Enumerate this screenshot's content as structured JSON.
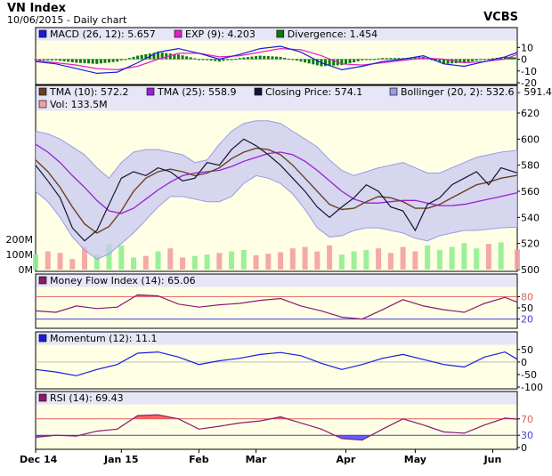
{
  "header": {
    "title": "VN Index",
    "subtitle": "10/06/2015 - Daily chart",
    "source": "VCBS"
  },
  "colors": {
    "panel_bg": "#ffffe6",
    "legend_bg": "#e6e6f6",
    "border": "#000000",
    "band_fill": "#c8c8f0",
    "band_edge": "#9a9ae6",
    "close": "#141432",
    "tma10": "#6a4024",
    "tma25": "#9b1fd6",
    "vol_up": "#90ee90",
    "vol_down": "#f4a0a0",
    "mfi": "#8a1a6e",
    "momentum": "#1a1adf",
    "rsi": "#8a1a6e",
    "macd": "#1a1adf",
    "signal": "#e020c8",
    "divergence": "#0a7a0a",
    "red_line": "#e06060",
    "blue_line": "#4040d0",
    "over_fill": "#ff6060",
    "under_fill": "#6060ff"
  },
  "chart_data": [
    {
      "type": "line",
      "panel": "MACD",
      "legend": [
        {
          "label": "MACD (26, 12): 5.657",
          "color": "#1a1adf"
        },
        {
          "label": "EXP (9): 4.203",
          "color": "#e020c8"
        },
        {
          "label": "Divergence: 1.454",
          "color": "#0a7a0a"
        }
      ],
      "yticks": [
        "10",
        "0",
        "-10",
        "-20"
      ],
      "ylim": [
        -20,
        14
      ],
      "x": [
        0,
        5,
        10,
        15,
        20,
        25,
        30,
        35,
        40,
        45,
        50,
        55,
        60,
        65,
        70,
        75,
        80,
        85,
        90,
        95,
        100,
        105,
        110,
        115,
        118
      ],
      "series": [
        {
          "name": "MACD",
          "values": [
            -2,
            -4,
            -8,
            -12,
            -11,
            -3,
            6,
            9,
            5,
            0,
            4,
            9,
            11,
            6,
            -3,
            -9,
            -6,
            -2,
            0,
            3,
            -4,
            -6,
            -2,
            2,
            5.657
          ]
        },
        {
          "name": "EXP",
          "values": [
            -1,
            -3,
            -5,
            -8,
            -9,
            -6,
            0,
            5,
            5,
            2,
            3,
            6,
            9,
            8,
            3,
            -4,
            -5,
            -3,
            -1,
            1,
            0,
            -3,
            -2,
            0,
            4.203
          ]
        }
      ]
    },
    {
      "type": "line",
      "panel": "Price",
      "legend": [
        {
          "label": "TMA (10): 572.2",
          "color": "#6a4024"
        },
        {
          "label": "TMA (25): 558.9",
          "color": "#9b1fd6"
        },
        {
          "label": "Closing Price: 574.1",
          "color": "#141432"
        },
        {
          "label": "Bollinger (20, 2): 532.6 - 591.4",
          "color": "#9a9ae6"
        },
        {
          "label": "Vol: 133.5M",
          "color": "#f4a0a0"
        }
      ],
      "yticks": [
        "620",
        "600",
        "580",
        "560",
        "540",
        "520",
        "500"
      ],
      "ylim": [
        500,
        620
      ],
      "vol_ticks": [
        "200M",
        "100M",
        "0M"
      ],
      "vol_lim": [
        0,
        300
      ],
      "x": [
        0,
        3,
        6,
        9,
        12,
        15,
        18,
        21,
        24,
        27,
        30,
        33,
        36,
        39,
        42,
        45,
        48,
        51,
        54,
        57,
        60,
        63,
        66,
        69,
        72,
        75,
        78,
        81,
        84,
        87,
        90,
        93,
        96,
        99,
        102,
        105,
        108,
        111,
        114,
        118
      ],
      "close": [
        580,
        568,
        555,
        532,
        522,
        530,
        550,
        570,
        575,
        572,
        578,
        575,
        568,
        570,
        582,
        580,
        592,
        600,
        595,
        588,
        580,
        570,
        560,
        548,
        540,
        548,
        555,
        565,
        560,
        548,
        545,
        530,
        550,
        555,
        565,
        570,
        575,
        565,
        578,
        574.1
      ],
      "tma10": [
        584,
        575,
        563,
        548,
        535,
        528,
        533,
        545,
        560,
        570,
        575,
        577,
        575,
        572,
        574,
        578,
        585,
        590,
        593,
        592,
        588,
        580,
        570,
        560,
        550,
        546,
        547,
        552,
        556,
        555,
        552,
        547,
        547,
        550,
        555,
        560,
        565,
        567,
        570,
        572.2
      ],
      "tma25": [
        596,
        590,
        582,
        572,
        563,
        553,
        545,
        543,
        547,
        554,
        561,
        567,
        572,
        574,
        575,
        576,
        579,
        583,
        586,
        589,
        590,
        588,
        583,
        576,
        568,
        560,
        554,
        551,
        551,
        552,
        553,
        553,
        551,
        549,
        549,
        550,
        552,
        554,
        556,
        558.9
      ],
      "bb_upper": [
        606,
        604,
        600,
        594,
        588,
        578,
        570,
        582,
        590,
        592,
        592,
        590,
        588,
        582,
        584,
        596,
        606,
        612,
        614,
        614,
        612,
        606,
        600,
        594,
        584,
        576,
        572,
        575,
        578,
        580,
        582,
        578,
        574,
        574,
        578,
        582,
        586,
        588,
        590,
        591.4
      ],
      "bb_lower": [
        560,
        552,
        540,
        525,
        515,
        508,
        512,
        520,
        528,
        538,
        548,
        556,
        556,
        554,
        552,
        552,
        556,
        566,
        572,
        570,
        566,
        558,
        546,
        532,
        525,
        526,
        530,
        532,
        532,
        530,
        528,
        524,
        522,
        526,
        528,
        530,
        530,
        531,
        532,
        532.6
      ],
      "volume": [
        100,
        120,
        110,
        70,
        150,
        100,
        170,
        160,
        80,
        90,
        120,
        140,
        80,
        90,
        100,
        110,
        120,
        130,
        95,
        105,
        115,
        140,
        150,
        120,
        160,
        100,
        120,
        130,
        140,
        110,
        150,
        120,
        160,
        130,
        150,
        175,
        140,
        170,
        180,
        133.5
      ]
    },
    {
      "type": "line",
      "panel": "Money Flow Index",
      "legend": [
        {
          "label": "Money Flow Index (14): 65.06",
          "color": "#8a1a6e"
        }
      ],
      "yticks": [
        "80",
        "50",
        "20"
      ],
      "ylim": [
        0,
        100
      ],
      "overbought": 80,
      "oversold": 20,
      "x": [
        0,
        5,
        10,
        15,
        20,
        25,
        30,
        35,
        40,
        45,
        50,
        55,
        60,
        65,
        70,
        75,
        80,
        85,
        90,
        95,
        100,
        105,
        110,
        115,
        118
      ],
      "values": [
        42,
        38,
        55,
        48,
        52,
        85,
        82,
        60,
        52,
        58,
        62,
        70,
        75,
        55,
        42,
        25,
        20,
        45,
        72,
        55,
        45,
        38,
        62,
        78,
        65.06
      ]
    },
    {
      "type": "line",
      "panel": "Momentum",
      "legend": [
        {
          "label": "Momentum (12): 11.1",
          "color": "#1a1adf"
        }
      ],
      "yticks": [
        "50",
        "0",
        "-50",
        "-100"
      ],
      "ylim": [
        -100,
        60
      ],
      "x": [
        0,
        5,
        10,
        15,
        20,
        25,
        30,
        35,
        40,
        45,
        50,
        55,
        60,
        65,
        70,
        75,
        80,
        85,
        90,
        95,
        100,
        105,
        110,
        115,
        118
      ],
      "values": [
        -30,
        -40,
        -55,
        -30,
        -10,
        35,
        40,
        20,
        -10,
        5,
        15,
        30,
        38,
        25,
        -5,
        -30,
        -10,
        15,
        30,
        10,
        -10,
        -20,
        20,
        40,
        11.1
      ]
    },
    {
      "type": "line",
      "panel": "RSI",
      "legend": [
        {
          "label": "RSI (14): 69.43",
          "color": "#8a1a6e"
        }
      ],
      "yticks": [
        "70",
        "30",
        "0"
      ],
      "ylim": [
        0,
        100
      ],
      "overbought": 70,
      "oversold": 30,
      "x": [
        0,
        5,
        10,
        15,
        20,
        25,
        30,
        35,
        40,
        45,
        50,
        55,
        60,
        65,
        70,
        75,
        80,
        85,
        90,
        95,
        100,
        105,
        110,
        115,
        118
      ],
      "values": [
        25,
        30,
        28,
        40,
        45,
        78,
        80,
        70,
        45,
        52,
        60,
        65,
        75,
        60,
        45,
        22,
        18,
        45,
        70,
        55,
        38,
        35,
        55,
        72,
        69.43
      ]
    }
  ],
  "x_axis": {
    "labels": [
      {
        "label": "Dec 14",
        "x": 0
      },
      {
        "label": "Jan 15",
        "x": 21
      },
      {
        "label": "Feb",
        "x": 40
      },
      {
        "label": "Mar",
        "x": 54
      },
      {
        "label": "Apr",
        "x": 76
      },
      {
        "label": "May",
        "x": 93
      },
      {
        "label": "Jun",
        "x": 112
      }
    ],
    "xlim": [
      0,
      118
    ]
  }
}
